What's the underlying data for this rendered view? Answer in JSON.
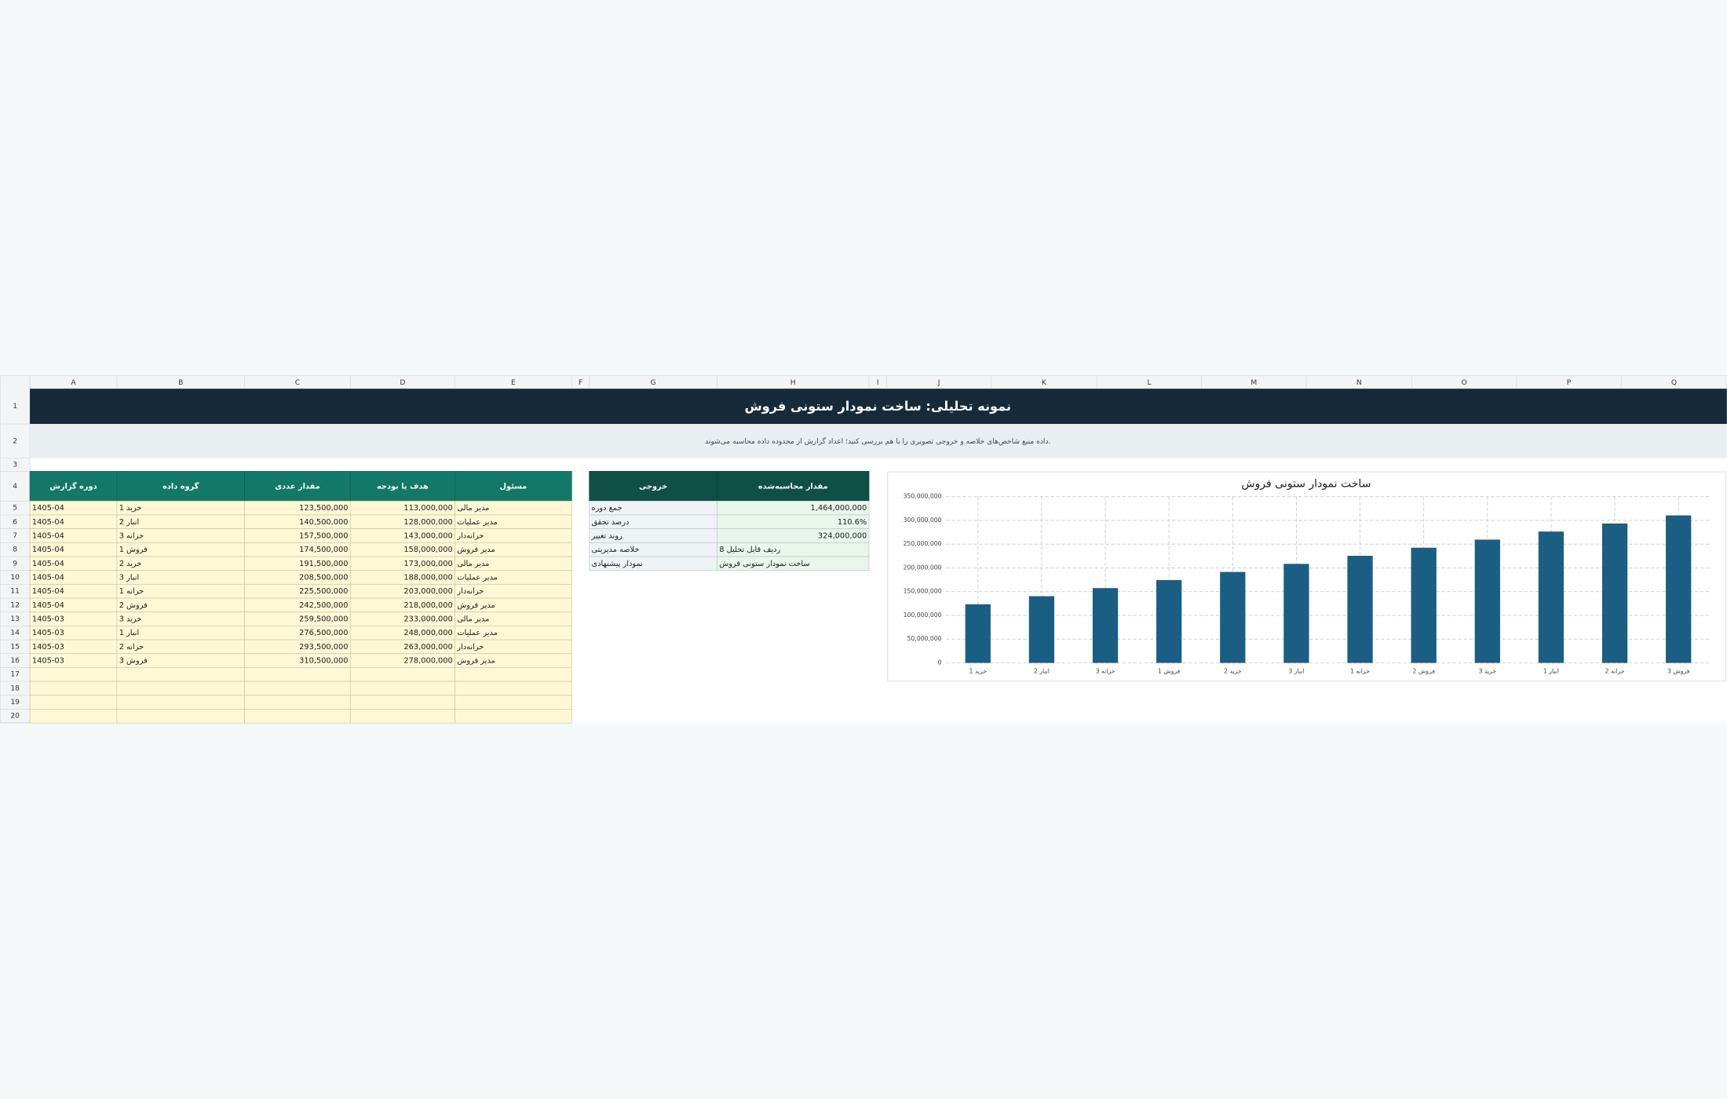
{
  "sheet": {
    "columns": [
      "A",
      "B",
      "C",
      "D",
      "E",
      "F",
      "G",
      "H",
      "I",
      "J",
      "K",
      "L",
      "M",
      "N",
      "O",
      "P",
      "Q"
    ],
    "rows": [
      1,
      2,
      3,
      4,
      5,
      6,
      7,
      8,
      9,
      10,
      11,
      12,
      13,
      14,
      15,
      16,
      17,
      18,
      19,
      20
    ]
  },
  "title": "نمونه تحلیلی: ساخت نمودار ستونی فروش",
  "subtitle": "داده منبع شاخص‌های خلاصه و خروجی تصویری را با هم بررسی کنید؛ اعداد گزارش از محدوده داده محاسبه می‌شوند.",
  "table": {
    "header": [
      "دوره گزارش",
      "گروه داده",
      "مقدار عددی",
      "هدف یا بودجه",
      "مسئول"
    ],
    "rows": [
      [
        "1405-04",
        "خرید 1",
        "123,500,000",
        "113,000,000",
        "مدیر مالی"
      ],
      [
        "1405-04",
        "انبار 2",
        "140,500,000",
        "128,000,000",
        "مدیر عملیات"
      ],
      [
        "1405-04",
        "خزانه 3",
        "157,500,000",
        "143,000,000",
        "خزانه‌دار"
      ],
      [
        "1405-04",
        "فروش 1",
        "174,500,000",
        "158,000,000",
        "مدیر فروش"
      ],
      [
        "1405-04",
        "خرید 2",
        "191,500,000",
        "173,000,000",
        "مدیر مالی"
      ],
      [
        "1405-04",
        "انبار 3",
        "208,500,000",
        "188,000,000",
        "مدیر عملیات"
      ],
      [
        "1405-04",
        "خزانه 1",
        "225,500,000",
        "203,000,000",
        "خزانه‌دار"
      ],
      [
        "1405-04",
        "فروش 2",
        "242,500,000",
        "218,000,000",
        "مدیر فروش"
      ],
      [
        "1405-03",
        "خرید 3",
        "259,500,000",
        "233,000,000",
        "مدیر مالی"
      ],
      [
        "1405-03",
        "انبار 1",
        "276,500,000",
        "248,000,000",
        "مدیر عملیات"
      ],
      [
        "1405-03",
        "خزانه 2",
        "293,500,000",
        "263,000,000",
        "خزانه‌دار"
      ],
      [
        "1405-03",
        "فروش 3",
        "310,500,000",
        "278,000,000",
        "مدیر فروش"
      ]
    ]
  },
  "summary": {
    "header": [
      "خروجی",
      "مقدار محاسبه‌شده"
    ],
    "rows": [
      [
        "جمع دوره",
        "1,464,000,000"
      ],
      [
        "درصد تحقق",
        "110.6%"
      ],
      [
        "روند تغییر",
        "324,000,000"
      ],
      [
        "خلاصه مدیریتی",
        "8 ردیف قابل تحلیل"
      ],
      [
        "نمودار پیشنهادی",
        "ساخت نمودار ستونی فروش"
      ]
    ]
  },
  "chart_data": {
    "type": "bar",
    "title": "ساخت نمودار ستونی فروش",
    "categories": [
      "خرید 1",
      "انبار 2",
      "خزانه 3",
      "فروش 1",
      "خرید 2",
      "انبار 3",
      "خزانه 1",
      "فروش 2",
      "خرید 3",
      "انبار 1",
      "خزانه 2",
      "فروش 3"
    ],
    "values": [
      123500000,
      140500000,
      157500000,
      174500000,
      191500000,
      208500000,
      225500000,
      242500000,
      259500000,
      276500000,
      293500000,
      310500000
    ],
    "color": "#1b5e84",
    "ylim": [
      0,
      350000000
    ],
    "yticks": [
      0,
      {
        "value": 50000000,
        "label": "50,000,000"
      },
      {
        "value": 100000000,
        "label": "100,000,000"
      },
      {
        "value": 150000000,
        "label": "150,000,000"
      },
      {
        "value": 200000000,
        "label": "200,000,000"
      },
      {
        "value": 250000000,
        "label": "250,000,000"
      },
      {
        "value": 300000000,
        "label": "300,000,000"
      },
      {
        "value": 350000000,
        "label": "350,000,000"
      }
    ],
    "grid": true
  }
}
